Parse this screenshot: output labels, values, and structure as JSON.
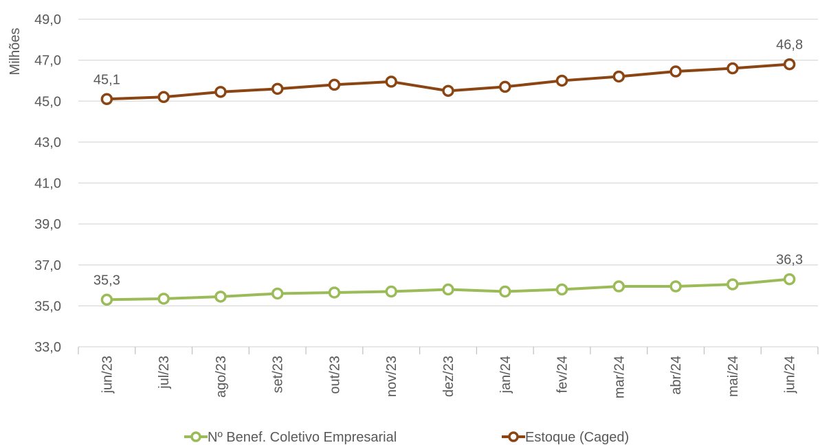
{
  "chart_data": {
    "type": "line",
    "ylabel": "Milhões",
    "ylim": [
      33.0,
      49.0
    ],
    "yticks": [
      "33,0",
      "35,0",
      "37,0",
      "39,0",
      "41,0",
      "43,0",
      "45,0",
      "47,0",
      "49,0"
    ],
    "categories": [
      "jun/23",
      "jul/23",
      "ago/23",
      "set/23",
      "out/23",
      "nov/23",
      "dez/23",
      "jan/24",
      "fev/24",
      "mar/24",
      "abr/24",
      "mai/24",
      "jun/24"
    ],
    "grid": "horizontal",
    "legend_position": "bottom",
    "series": [
      {
        "name": "Nº Benef. Coletivo Empresarial",
        "color": "#9BBB59",
        "values": [
          35.3,
          35.35,
          35.45,
          35.6,
          35.65,
          35.7,
          35.8,
          35.7,
          35.8,
          35.95,
          35.95,
          36.05,
          36.3
        ],
        "labels": [
          {
            "index": 0,
            "text": "35,3"
          },
          {
            "index": 12,
            "text": "36,3"
          }
        ]
      },
      {
        "name": "Estoque (Caged)",
        "color": "#8B4513",
        "values": [
          45.1,
          45.2,
          45.45,
          45.6,
          45.8,
          45.95,
          45.5,
          45.7,
          46.0,
          46.2,
          46.45,
          46.6,
          46.8
        ],
        "labels": [
          {
            "index": 0,
            "text": "45,1"
          },
          {
            "index": 12,
            "text": "46,8"
          }
        ]
      }
    ]
  }
}
